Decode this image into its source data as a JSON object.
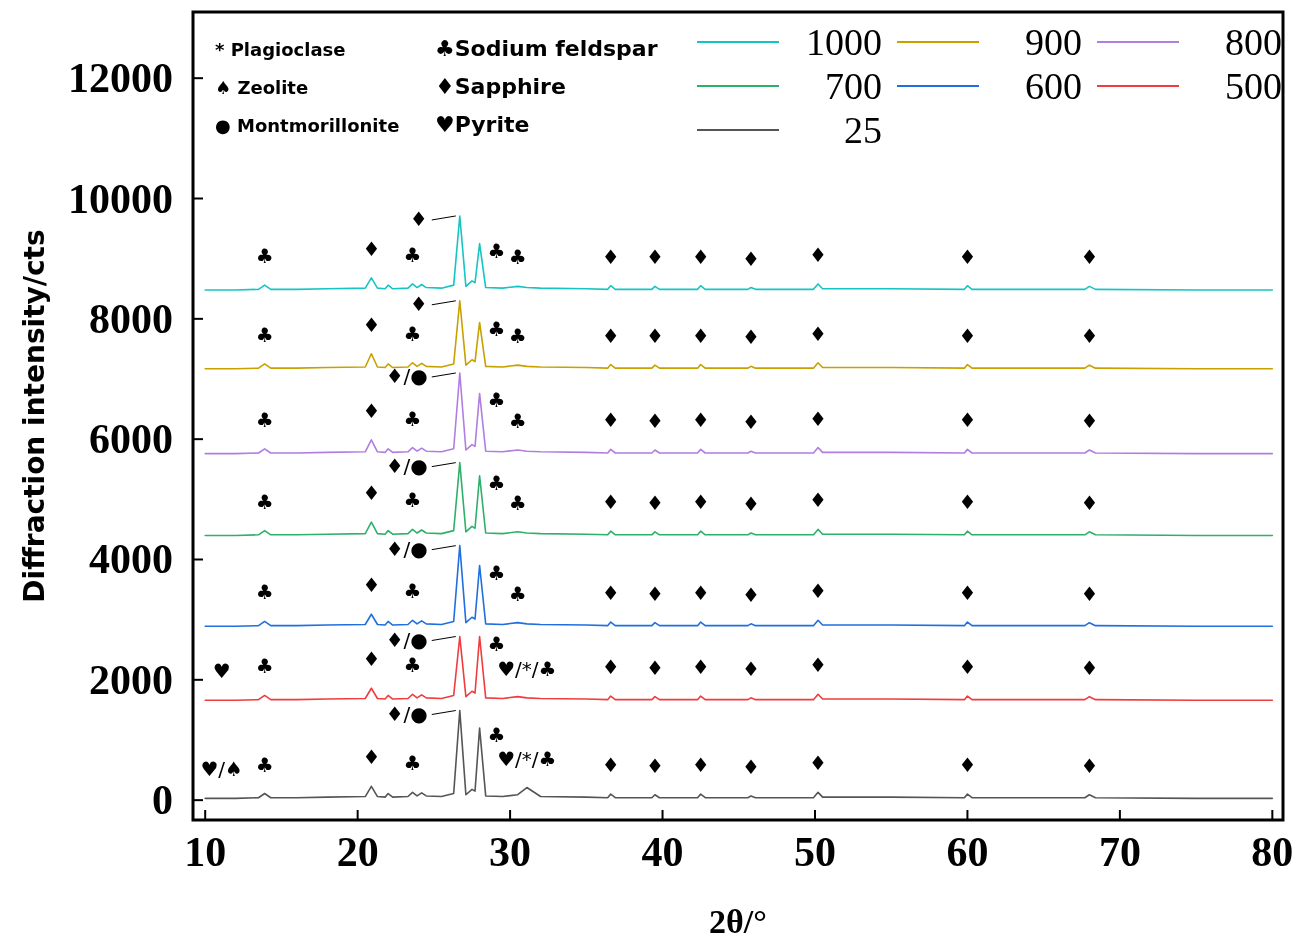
{
  "chart_data": {
    "type": "line",
    "xlabel": "2θ/°",
    "ylabel": "Diffraction intensity/cts",
    "xlim": [
      9.2,
      80.7
    ],
    "ylim": [
      -330,
      13100
    ],
    "xticks": [
      10,
      20,
      30,
      40,
      50,
      60,
      70,
      80
    ],
    "yticks": [
      0,
      2000,
      4000,
      6000,
      8000,
      10000,
      12000
    ],
    "grid": false,
    "legend": "top right",
    "marker": "none",
    "line_style": "solid",
    "x": [
      10,
      12,
      13.5,
      13.9,
      14.3,
      16,
      18,
      20.5,
      20.9,
      21.3,
      21.8,
      22.0,
      22.3,
      23.3,
      23.6,
      23.9,
      24.2,
      24.5,
      25.5,
      26.3,
      26.7,
      27.1,
      27.5,
      27.7,
      28.0,
      28.4,
      29.5,
      30.5,
      31.1,
      32,
      35,
      36.4,
      36.6,
      36.9,
      39.3,
      39.5,
      39.8,
      42.3,
      42.5,
      42.8,
      45.6,
      45.8,
      46.1,
      49.9,
      50.2,
      50.5,
      55,
      59.8,
      60.0,
      60.3,
      67.7,
      68.0,
      68.4,
      75,
      80
    ],
    "series": [
      {
        "name": "1000",
        "color": "#17c4c4",
        "values": [
          8480,
          8480,
          8490,
          8560,
          8490,
          8490,
          8500,
          8510,
          8680,
          8510,
          8500,
          8560,
          8500,
          8510,
          8580,
          8520,
          8570,
          8520,
          8510,
          8560,
          9710,
          8540,
          8630,
          8600,
          9250,
          8520,
          8510,
          8540,
          8520,
          8510,
          8500,
          8490,
          8550,
          8490,
          8490,
          8540,
          8490,
          8490,
          8550,
          8490,
          8490,
          8520,
          8490,
          8490,
          8580,
          8500,
          8500,
          8490,
          8550,
          8490,
          8490,
          8540,
          8490,
          8480,
          8480
        ]
      },
      {
        "name": "900",
        "color": "#c8a000",
        "values": [
          7170,
          7170,
          7180,
          7250,
          7180,
          7180,
          7190,
          7200,
          7420,
          7200,
          7190,
          7250,
          7190,
          7200,
          7270,
          7210,
          7260,
          7210,
          7200,
          7250,
          8300,
          7230,
          7320,
          7290,
          7940,
          7210,
          7200,
          7230,
          7210,
          7200,
          7190,
          7180,
          7240,
          7180,
          7180,
          7230,
          7180,
          7180,
          7240,
          7180,
          7180,
          7210,
          7180,
          7180,
          7270,
          7190,
          7190,
          7180,
          7240,
          7180,
          7180,
          7230,
          7180,
          7170,
          7170
        ]
      },
      {
        "name": "800",
        "color": "#b07ee0",
        "values": [
          5760,
          5760,
          5770,
          5840,
          5770,
          5770,
          5780,
          5790,
          5990,
          5790,
          5780,
          5840,
          5780,
          5790,
          5860,
          5800,
          5850,
          5800,
          5790,
          5840,
          7100,
          5820,
          5910,
          5880,
          6760,
          5800,
          5790,
          5820,
          5800,
          5790,
          5780,
          5770,
          5830,
          5770,
          5770,
          5820,
          5770,
          5770,
          5830,
          5770,
          5770,
          5800,
          5770,
          5770,
          5860,
          5780,
          5780,
          5770,
          5830,
          5770,
          5770,
          5820,
          5770,
          5760,
          5760
        ]
      },
      {
        "name": "700",
        "color": "#2fb06a",
        "values": [
          4400,
          4400,
          4410,
          4480,
          4410,
          4410,
          4420,
          4430,
          4620,
          4430,
          4420,
          4480,
          4420,
          4430,
          4500,
          4440,
          4490,
          4440,
          4430,
          4480,
          5610,
          4460,
          4550,
          4520,
          5390,
          4440,
          4430,
          4460,
          4440,
          4430,
          4420,
          4410,
          4470,
          4410,
          4410,
          4460,
          4410,
          4410,
          4470,
          4410,
          4410,
          4440,
          4410,
          4410,
          4500,
          4420,
          4420,
          4410,
          4470,
          4410,
          4410,
          4460,
          4410,
          4400,
          4400
        ]
      },
      {
        "name": "600",
        "color": "#1f6fe0",
        "values": [
          2890,
          2890,
          2900,
          2970,
          2900,
          2900,
          2910,
          2920,
          3090,
          2920,
          2910,
          2970,
          2910,
          2920,
          2990,
          2930,
          2980,
          2930,
          2920,
          2970,
          4230,
          2950,
          3040,
          3010,
          3900,
          2930,
          2920,
          2950,
          2930,
          2920,
          2910,
          2900,
          2960,
          2900,
          2900,
          2950,
          2900,
          2900,
          2960,
          2900,
          2900,
          2930,
          2900,
          2900,
          2990,
          2910,
          2910,
          2900,
          2960,
          2900,
          2900,
          2950,
          2900,
          2890,
          2890
        ]
      },
      {
        "name": "500",
        "color": "#f03c3c",
        "values": [
          1660,
          1660,
          1670,
          1740,
          1670,
          1670,
          1680,
          1690,
          1860,
          1690,
          1680,
          1740,
          1680,
          1690,
          1760,
          1700,
          1750,
          1700,
          1690,
          1740,
          2720,
          1720,
          1810,
          1780,
          2720,
          1700,
          1690,
          1720,
          1700,
          1690,
          1680,
          1670,
          1730,
          1670,
          1670,
          1720,
          1670,
          1670,
          1730,
          1670,
          1670,
          1700,
          1670,
          1670,
          1760,
          1680,
          1680,
          1670,
          1730,
          1670,
          1670,
          1720,
          1670,
          1660,
          1660
        ]
      },
      {
        "name": "25",
        "color": "#555555",
        "values": [
          30,
          30,
          40,
          110,
          40,
          40,
          50,
          60,
          230,
          60,
          50,
          110,
          50,
          60,
          130,
          70,
          120,
          70,
          60,
          110,
          1490,
          90,
          180,
          150,
          1200,
          70,
          60,
          90,
          210,
          60,
          50,
          40,
          100,
          40,
          40,
          90,
          40,
          40,
          100,
          40,
          40,
          70,
          40,
          40,
          130,
          50,
          50,
          40,
          100,
          40,
          40,
          90,
          40,
          30,
          30
        ]
      }
    ],
    "annotations": [
      "* Plagioclase",
      "♠ Zeolite",
      "● Montmorillonite",
      "♣Sodium feldspar",
      "♦Sapphire",
      "♥Pyrite",
      {
        "text": "♣",
        "x": 13.9,
        "y": 8560
      },
      {
        "text": "♦",
        "x": 20.9,
        "y": 8680
      },
      {
        "text": "♣",
        "x": 23.6,
        "y": 8580
      },
      {
        "text": "♦",
        "x": 26.7,
        "y": 9710
      },
      {
        "text": "♣",
        "x": 28.0,
        "y": 9250
      },
      {
        "text": "♣",
        "x": 30.5,
        "y": 8540
      },
      {
        "text": "♦",
        "x": 36.6,
        "y": 8550
      },
      {
        "text": "♦",
        "x": 39.5,
        "y": 8540
      },
      {
        "text": "♦",
        "x": 42.5,
        "y": 8550
      },
      {
        "text": "♦",
        "x": 45.8,
        "y": 8520
      },
      {
        "text": "♦",
        "x": 50.2,
        "y": 8580
      },
      {
        "text": "♦",
        "x": 60.0,
        "y": 8550
      },
      {
        "text": "♦",
        "x": 68.0,
        "y": 8540
      },
      {
        "text": "♣",
        "x": 13.9,
        "y": 7250
      },
      {
        "text": "♦",
        "x": 20.9,
        "y": 7420
      },
      {
        "text": "♣",
        "x": 23.6,
        "y": 7270
      },
      {
        "text": "♦",
        "x": 26.7,
        "y": 8300
      },
      {
        "text": "♣",
        "x": 28.0,
        "y": 7940
      },
      {
        "text": "♣",
        "x": 30.5,
        "y": 7230
      },
      {
        "text": "♦",
        "x": 36.6,
        "y": 7240
      },
      {
        "text": "♦",
        "x": 39.5,
        "y": 7230
      },
      {
        "text": "♦",
        "x": 42.5,
        "y": 7240
      },
      {
        "text": "♦",
        "x": 45.8,
        "y": 7210
      },
      {
        "text": "♦",
        "x": 50.2,
        "y": 7270
      },
      {
        "text": "♦",
        "x": 60.0,
        "y": 7240
      },
      {
        "text": "♦",
        "x": 68.0,
        "y": 7230
      },
      {
        "text": "♣",
        "x": 13.9,
        "y": 5840
      },
      {
        "text": "♦",
        "x": 20.9,
        "y": 5990
      },
      {
        "text": "♣",
        "x": 23.6,
        "y": 5860
      },
      {
        "text": "♦/●",
        "x": 26.7,
        "y": 7100
      },
      {
        "text": "♣",
        "x": 28.0,
        "y": 6760
      },
      {
        "text": "♣",
        "x": 30.5,
        "y": 5820
      },
      {
        "text": "♦",
        "x": 36.6,
        "y": 5830
      },
      {
        "text": "♦",
        "x": 39.5,
        "y": 5820
      },
      {
        "text": "♦",
        "x": 42.5,
        "y": 5830
      },
      {
        "text": "♦",
        "x": 45.8,
        "y": 5800
      },
      {
        "text": "♦",
        "x": 50.2,
        "y": 5860
      },
      {
        "text": "♦",
        "x": 60.0,
        "y": 5830
      },
      {
        "text": "♦",
        "x": 68.0,
        "y": 5820
      },
      {
        "text": "♣",
        "x": 13.9,
        "y": 4480
      },
      {
        "text": "♦",
        "x": 20.9,
        "y": 4620
      },
      {
        "text": "♣",
        "x": 23.6,
        "y": 4500
      },
      {
        "text": "♦/●",
        "x": 26.7,
        "y": 5610
      },
      {
        "text": "♣",
        "x": 28.0,
        "y": 5390
      },
      {
        "text": "♣",
        "x": 30.5,
        "y": 4460
      },
      {
        "text": "♦",
        "x": 36.6,
        "y": 4470
      },
      {
        "text": "♦",
        "x": 39.5,
        "y": 4460
      },
      {
        "text": "♦",
        "x": 42.5,
        "y": 4470
      },
      {
        "text": "♦",
        "x": 45.8,
        "y": 4440
      },
      {
        "text": "♦",
        "x": 50.2,
        "y": 4500
      },
      {
        "text": "♦",
        "x": 60.0,
        "y": 4470
      },
      {
        "text": "♦",
        "x": 68.0,
        "y": 4460
      },
      {
        "text": "♣",
        "x": 13.9,
        "y": 2970
      },
      {
        "text": "♦",
        "x": 20.9,
        "y": 3090
      },
      {
        "text": "♣",
        "x": 23.6,
        "y": 2990
      },
      {
        "text": "♦/●",
        "x": 26.7,
        "y": 4230
      },
      {
        "text": "♣",
        "x": 28.0,
        "y": 3900
      },
      {
        "text": "♣",
        "x": 30.5,
        "y": 2950
      },
      {
        "text": "♦",
        "x": 36.6,
        "y": 2960
      },
      {
        "text": "♦",
        "x": 39.5,
        "y": 2950
      },
      {
        "text": "♦",
        "x": 42.5,
        "y": 2960
      },
      {
        "text": "♦",
        "x": 45.8,
        "y": 2930
      },
      {
        "text": "♦",
        "x": 50.2,
        "y": 2990
      },
      {
        "text": "♦",
        "x": 60.0,
        "y": 2960
      },
      {
        "text": "♦",
        "x": 68.0,
        "y": 2950
      },
      {
        "text": "♥",
        "x": 12,
        "y": 1660
      },
      {
        "text": "♣",
        "x": 13.9,
        "y": 1740
      },
      {
        "text": "♦",
        "x": 20.9,
        "y": 1860
      },
      {
        "text": "♣",
        "x": 23.6,
        "y": 1760
      },
      {
        "text": "♦/●",
        "x": 26.7,
        "y": 2720
      },
      {
        "text": "♣",
        "x": 28.0,
        "y": 2720
      },
      {
        "text": "♥/*/♣",
        "x": 31.1,
        "y": 1700
      },
      {
        "text": "♦",
        "x": 36.6,
        "y": 1730
      },
      {
        "text": "♦",
        "x": 39.5,
        "y": 1720
      },
      {
        "text": "♦",
        "x": 42.5,
        "y": 1730
      },
      {
        "text": "♦",
        "x": 45.8,
        "y": 1700
      },
      {
        "text": "♦",
        "x": 50.2,
        "y": 1760
      },
      {
        "text": "♦",
        "x": 60.0,
        "y": 1730
      },
      {
        "text": "♦",
        "x": 68.0,
        "y": 1720
      },
      {
        "text": "♥/♠",
        "x": 12,
        "y": 30
      },
      {
        "text": "♣",
        "x": 13.9,
        "y": 110
      },
      {
        "text": "♦",
        "x": 20.9,
        "y": 230
      },
      {
        "text": "♣",
        "x": 23.6,
        "y": 130
      },
      {
        "text": "♦/●",
        "x": 26.7,
        "y": 1490
      },
      {
        "text": "♣",
        "x": 28.0,
        "y": 1200
      },
      {
        "text": "♥/*/♣",
        "x": 31.1,
        "y": 210
      },
      {
        "text": "♦",
        "x": 36.6,
        "y": 100
      },
      {
        "text": "♦",
        "x": 39.5,
        "y": 90
      },
      {
        "text": "♦",
        "x": 42.5,
        "y": 100
      },
      {
        "text": "♦",
        "x": 45.8,
        "y": 70
      },
      {
        "text": "♦",
        "x": 50.2,
        "y": 130
      },
      {
        "text": "♦",
        "x": 60.0,
        "y": 100
      },
      {
        "text": "♦",
        "x": 68.0,
        "y": 90
      }
    ]
  }
}
